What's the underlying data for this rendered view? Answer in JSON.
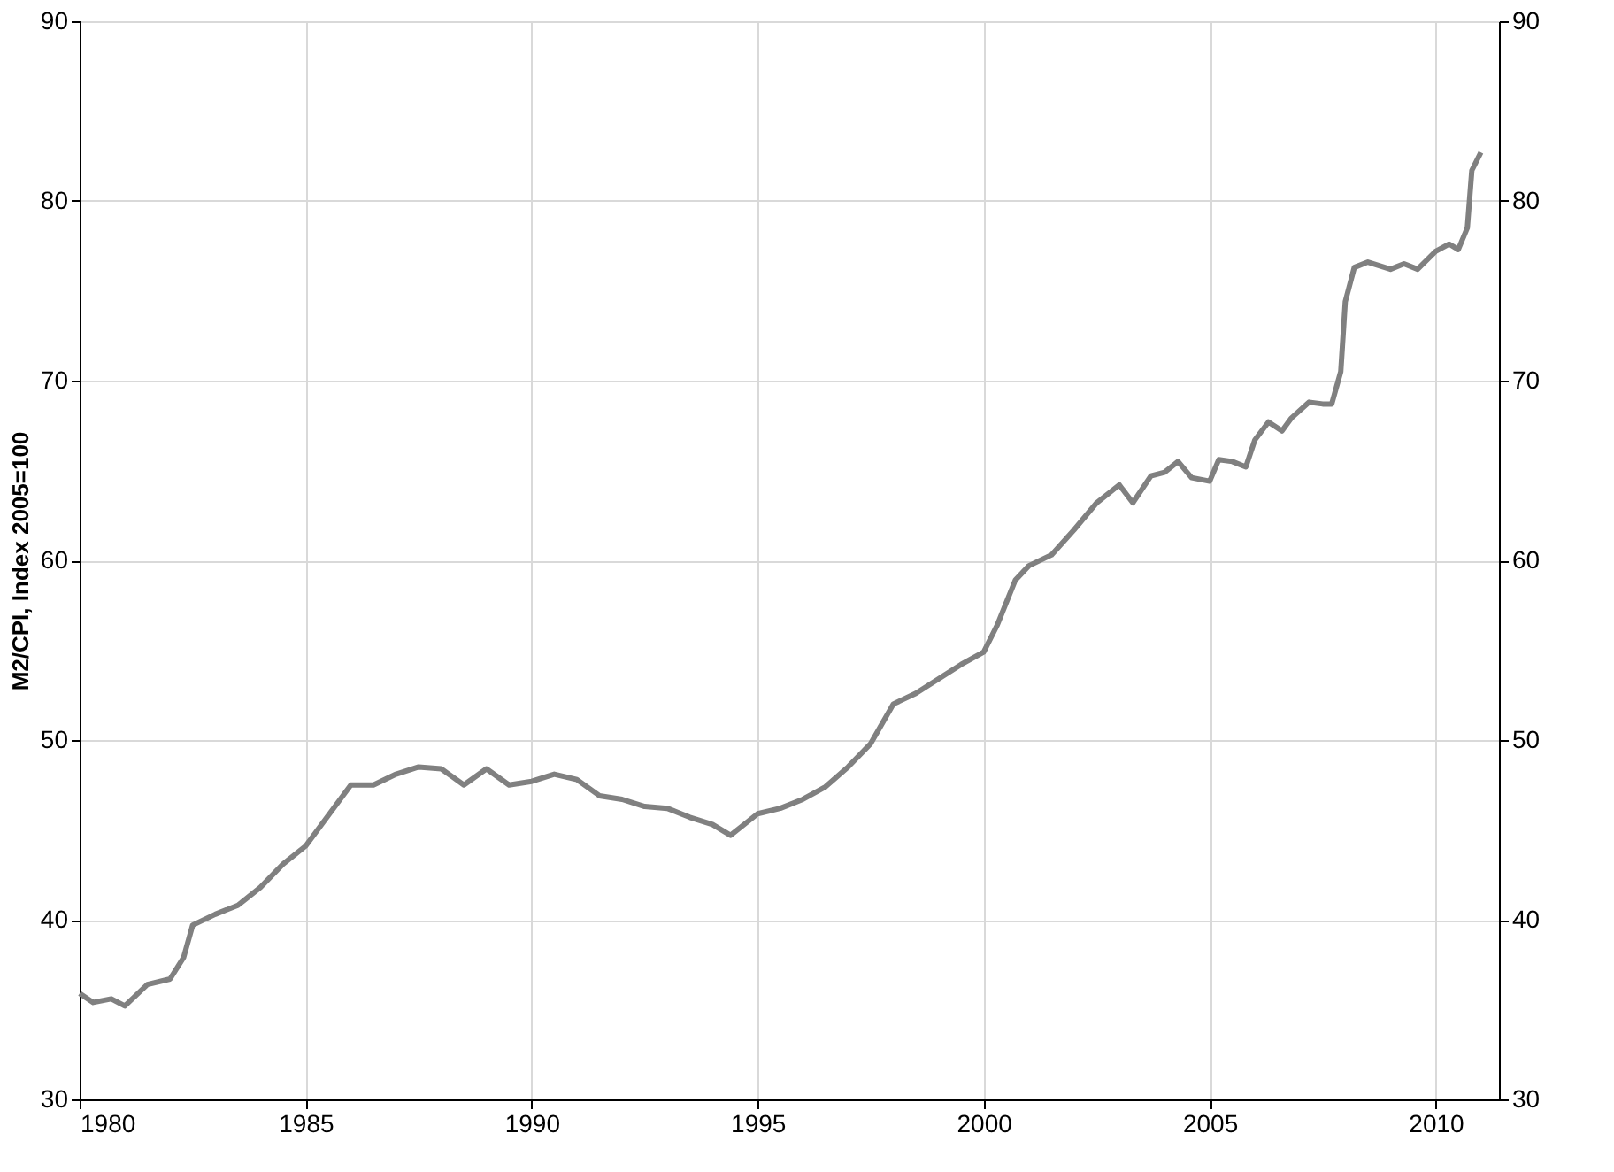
{
  "chart_data": {
    "type": "line",
    "ylabel": "M2/CPI, Index 2005=100",
    "x": [
      1980.0,
      1980.3,
      1980.7,
      1981.0,
      1981.5,
      1982.0,
      1982.3,
      1982.5,
      1983.0,
      1983.5,
      1984.0,
      1984.5,
      1985.0,
      1985.5,
      1986.0,
      1986.5,
      1987.0,
      1987.5,
      1988.0,
      1988.5,
      1989.0,
      1989.5,
      1990.0,
      1990.5,
      1991.0,
      1991.5,
      1992.0,
      1992.5,
      1993.0,
      1993.5,
      1994.0,
      1994.4,
      1995.0,
      1995.5,
      1996.0,
      1996.5,
      1997.0,
      1997.5,
      1998.0,
      1998.5,
      1999.0,
      1999.5,
      2000.0,
      2000.3,
      2000.7,
      2001.0,
      2001.5,
      2002.0,
      2002.5,
      2003.0,
      2003.3,
      2003.7,
      2004.0,
      2004.3,
      2004.6,
      2005.0,
      2005.2,
      2005.5,
      2005.8,
      2006.0,
      2006.3,
      2006.6,
      2006.8,
      2007.2,
      2007.5,
      2007.7,
      2007.9,
      2008.0,
      2008.2,
      2008.5,
      2009.0,
      2009.3,
      2009.6,
      2010.0,
      2010.3,
      2010.5,
      2010.7,
      2010.8,
      2011.0
    ],
    "series": [
      {
        "color": "#808080",
        "values": [
          35.9,
          35.4,
          35.6,
          35.2,
          36.4,
          36.7,
          37.9,
          39.7,
          40.3,
          40.8,
          41.8,
          43.1,
          44.1,
          45.8,
          47.5,
          47.5,
          48.1,
          48.5,
          48.4,
          47.5,
          48.4,
          47.5,
          47.7,
          48.1,
          47.8,
          46.9,
          46.7,
          46.3,
          46.2,
          45.7,
          45.3,
          44.7,
          45.9,
          46.2,
          46.7,
          47.4,
          48.5,
          49.8,
          52.0,
          52.6,
          53.4,
          54.2,
          54.9,
          56.4,
          58.9,
          59.7,
          60.3,
          61.7,
          63.2,
          64.2,
          63.2,
          64.7,
          64.9,
          65.5,
          64.6,
          64.4,
          65.6,
          65.5,
          65.2,
          66.7,
          67.7,
          67.2,
          67.9,
          68.8,
          68.7,
          68.7,
          70.5,
          74.4,
          76.3,
          76.6,
          76.2,
          76.5,
          76.2,
          77.2,
          77.6,
          77.3,
          78.5,
          81.7,
          82.7
        ]
      }
    ],
    "xlim": [
      1980,
      2011.4
    ],
    "xticks": [
      1980,
      1985,
      1990,
      1995,
      2000,
      2005,
      2010
    ],
    "ylim": [
      30,
      90
    ],
    "yticks": [
      30,
      40,
      50,
      60,
      70,
      80,
      90
    ],
    "y2lim": [
      30,
      90
    ],
    "y2ticks": [
      30,
      40,
      50,
      60,
      70,
      80,
      90
    ],
    "grid": true,
    "marker": "none",
    "line_style": "solid"
  }
}
